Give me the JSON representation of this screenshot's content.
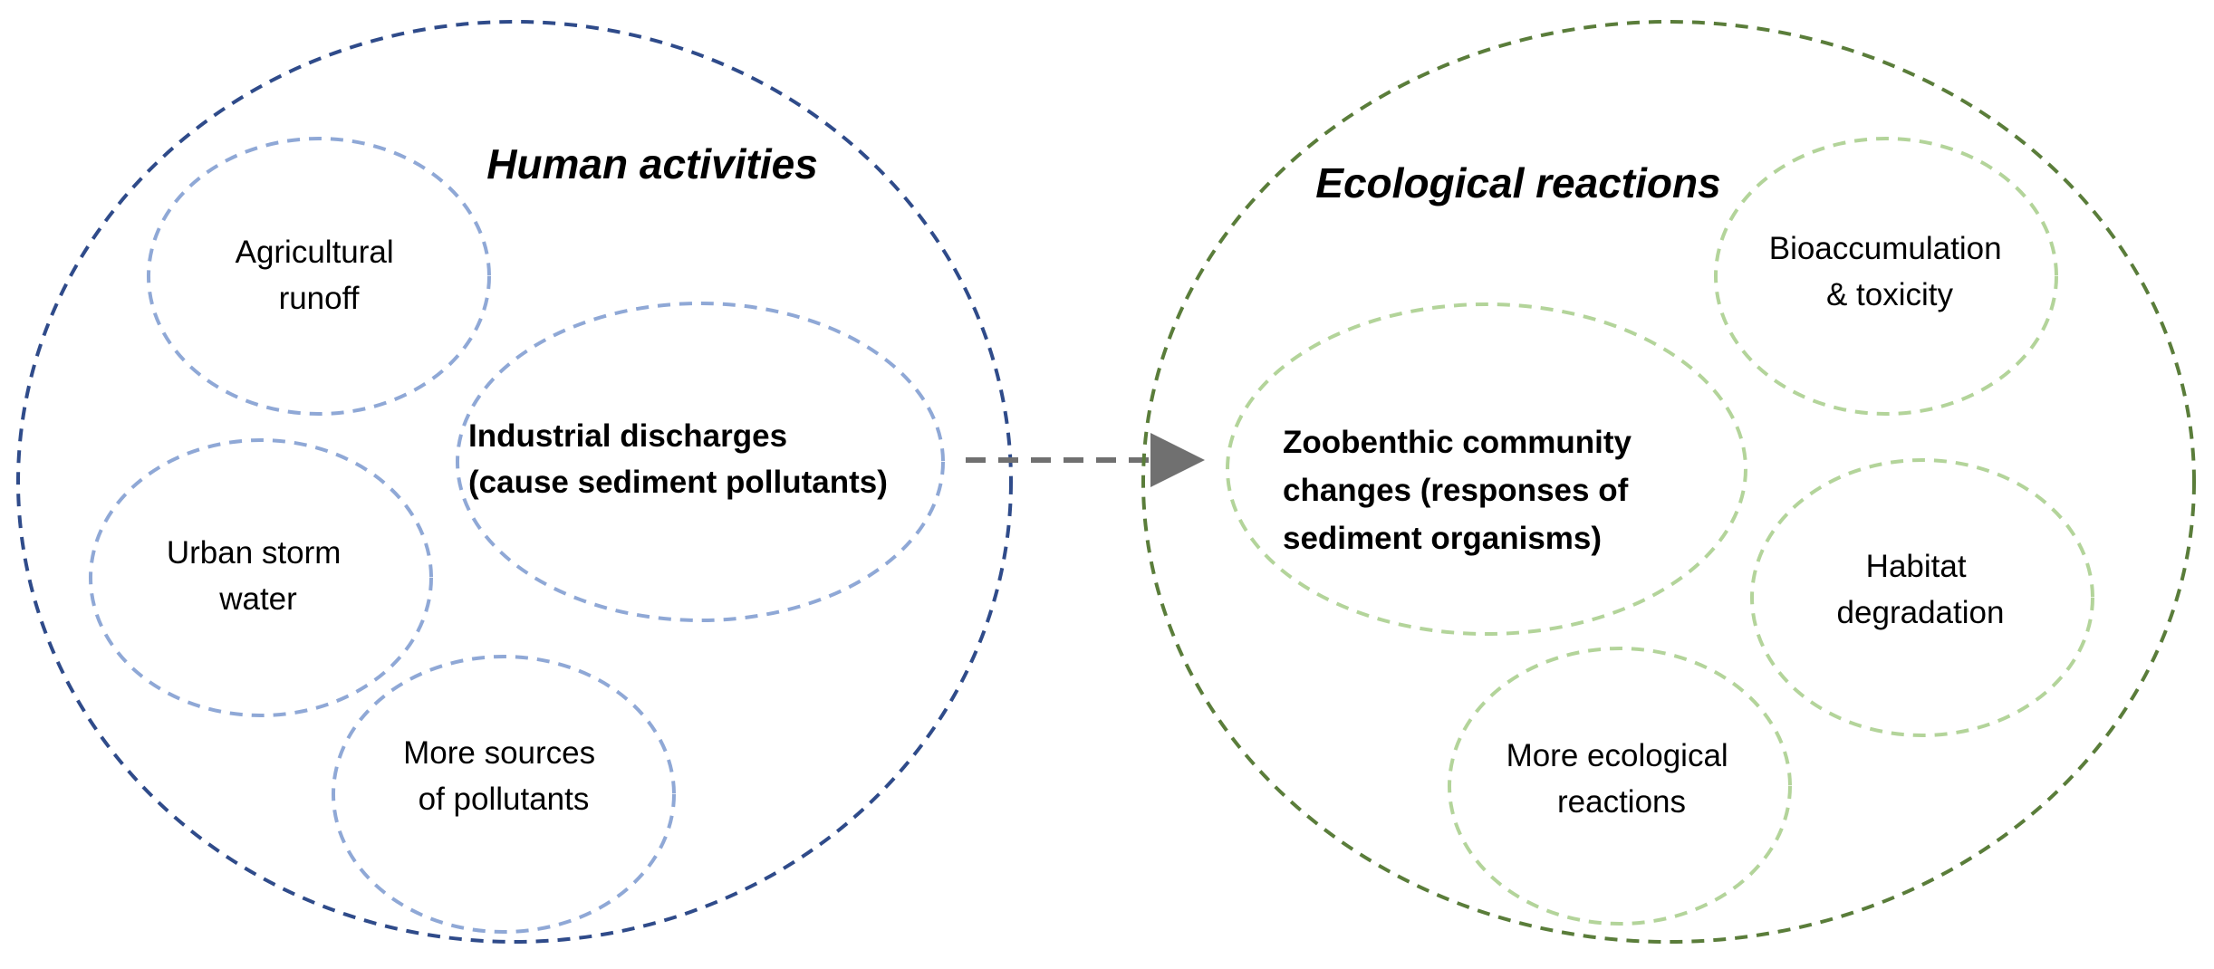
{
  "colors": {
    "human_outer": "#2f4b8a",
    "human_inner": "#8fa8d6",
    "eco_outer": "#5a7d3a",
    "eco_inner": "#b3d49a",
    "arrow": "#707070"
  },
  "human": {
    "title": "Human activities",
    "agricultural": [
      "Agricultural",
      "runoff"
    ],
    "industrial": [
      "Industrial discharges",
      "(cause sediment pollutants)"
    ],
    "urban": [
      "Urban storm",
      "water"
    ],
    "more": [
      "More sources",
      "of pollutants"
    ]
  },
  "eco": {
    "title": "Ecological reactions",
    "bioaccumulation": [
      "Bioaccumulation",
      "& toxicity"
    ],
    "zoobenthic": [
      "Zoobenthic community",
      "changes (responses of",
      "sediment organisms)"
    ],
    "habitat": [
      "Habitat",
      "degradation"
    ],
    "more": [
      "More ecological",
      "reactions"
    ]
  }
}
